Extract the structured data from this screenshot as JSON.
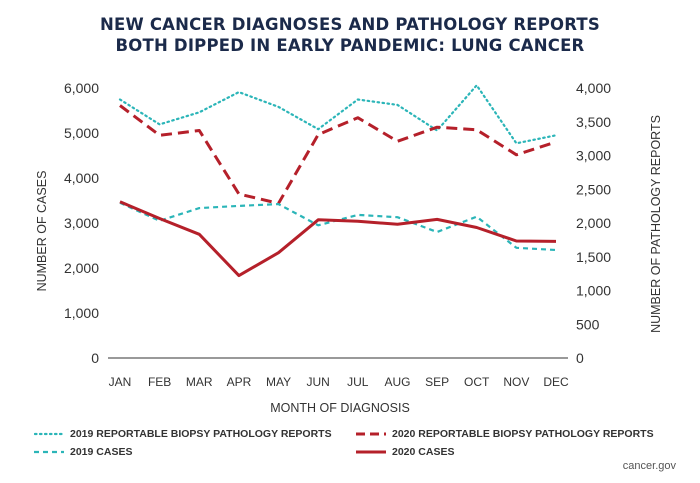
{
  "title_lines": [
    "NEW CANCER DIAGNOSES AND PATHOLOGY REPORTS",
    "BOTH DIPPED IN EARLY PANDEMIC: LUNG CANCER"
  ],
  "source": "cancer.gov",
  "chart_data": {
    "type": "line",
    "title": "NEW CANCER DIAGNOSES AND PATHOLOGY REPORTS BOTH DIPPED IN EARLY PANDEMIC: LUNG CANCER",
    "xlabel": "MONTH OF DIAGNOSIS",
    "ylabel_left": "NUMBER OF CASES",
    "ylabel_right": "NUMBER OF PATHOLOGY REPORTS",
    "categories": [
      "JAN",
      "FEB",
      "MAR",
      "APR",
      "MAY",
      "JUN",
      "JUL",
      "AUG",
      "SEP",
      "OCT",
      "NOV",
      "DEC"
    ],
    "ylim_left": [
      0,
      6000
    ],
    "ylim_right": [
      0,
      4000
    ],
    "yticks_left": [
      "0",
      "1,000",
      "2,000",
      "3,000",
      "4,000",
      "5,000",
      "6,000"
    ],
    "yticks_right": [
      "0",
      "500",
      "1,000",
      "1,500",
      "2,000",
      "2,500",
      "3,000",
      "3,500",
      "4,000"
    ],
    "legend_position": "bottom",
    "grid": false,
    "series": [
      {
        "name": "2019 REPORTABLE BIOPSY PATHOLOGY REPORTS",
        "axis": "right",
        "style": "dotted",
        "color": "#2bb5b8",
        "values": [
          3830,
          3460,
          3640,
          3940,
          3720,
          3390,
          3830,
          3750,
          3370,
          4040,
          3180,
          3300
        ]
      },
      {
        "name": "2020 REPORTABLE BIOPSY PATHOLOGY REPORTS",
        "axis": "right",
        "style": "dashed",
        "color": "#b5202a",
        "values": [
          3740,
          3300,
          3370,
          2430,
          2290,
          3310,
          3560,
          3210,
          3420,
          3380,
          3010,
          3200
        ]
      },
      {
        "name": "2019 CASES",
        "axis": "left",
        "style": "dashed-short",
        "color": "#2bb5b8",
        "values": [
          3450,
          3050,
          3330,
          3380,
          3420,
          2950,
          3180,
          3130,
          2800,
          3140,
          2450,
          2400
        ]
      },
      {
        "name": "2020 CASES",
        "axis": "left",
        "style": "solid",
        "color": "#b5202a",
        "values": [
          3470,
          3100,
          2750,
          1830,
          2340,
          3070,
          3040,
          2970,
          3080,
          2900,
          2600,
          2590
        ]
      }
    ]
  }
}
